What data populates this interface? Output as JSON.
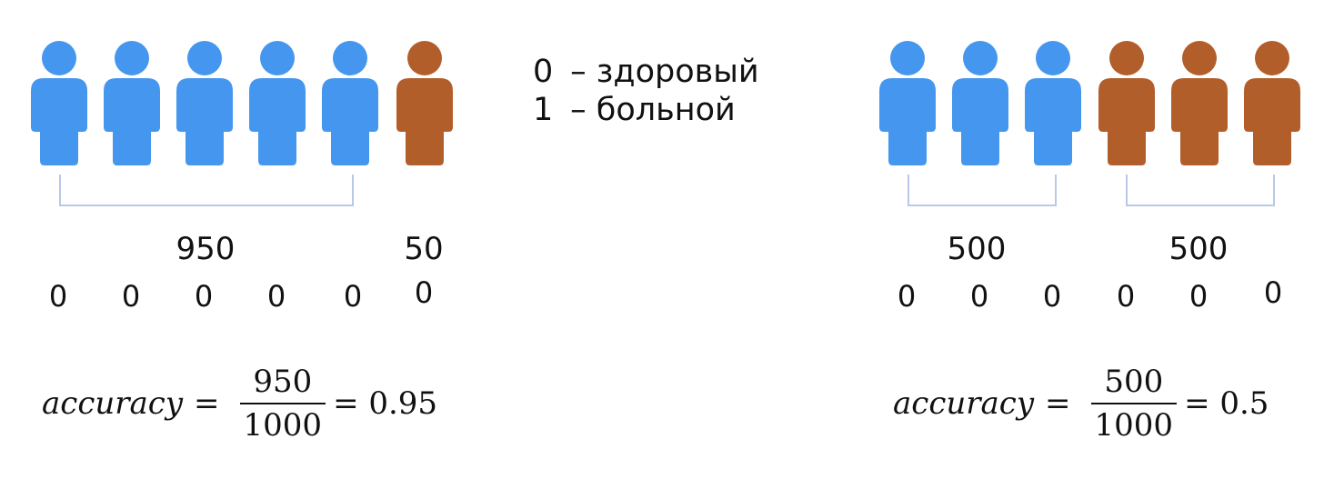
{
  "colors": {
    "healthy": "#4596ef",
    "sick": "#b25e2b",
    "bracket": "#b9c8e6"
  },
  "legend": [
    {
      "code": "0",
      "label": "– здоровый"
    },
    {
      "code": "1",
      "label": "– больной"
    }
  ],
  "left": {
    "people": [
      "healthy",
      "healthy",
      "healthy",
      "healthy",
      "healthy",
      "sick"
    ],
    "group_counts": [
      "950",
      "50"
    ],
    "predictions": [
      "0",
      "0",
      "0",
      "0",
      "0",
      "0"
    ],
    "formula": {
      "lhs": "accuracy",
      "eq": "=",
      "numerator": "950",
      "denominator": "1000",
      "result": "= 0.95"
    }
  },
  "right": {
    "people": [
      "healthy",
      "healthy",
      "healthy",
      "sick",
      "sick",
      "sick"
    ],
    "group_counts": [
      "500",
      "500"
    ],
    "predictions": [
      "0",
      "0",
      "0",
      "0",
      "0",
      "0"
    ],
    "formula": {
      "lhs": "accuracy",
      "eq": "=",
      "numerator": "500",
      "denominator": "1000",
      "result": "= 0.5"
    }
  }
}
